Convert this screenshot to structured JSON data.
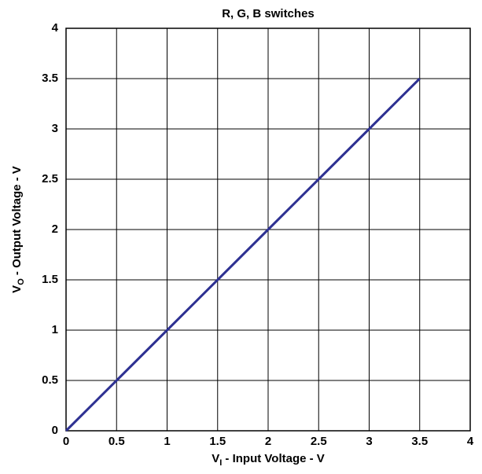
{
  "chart_data": {
    "type": "line",
    "title": "R, G, B switches",
    "x_label": {
      "main": "V",
      "sub": "I",
      "rest": " - Input Voltage - V"
    },
    "y_label": {
      "main": "V",
      "sub": "O",
      "rest": " - Output Voltage - V"
    },
    "x": [
      0,
      0.5,
      1,
      1.5,
      2,
      2.5,
      3,
      3.5
    ],
    "series": [
      {
        "color": "#2e3192",
        "values": [
          0,
          0.5,
          1,
          1.5,
          2,
          2.5,
          3,
          3.5
        ]
      }
    ],
    "xlim": [
      0,
      4
    ],
    "ylim": [
      0,
      4
    ],
    "xticks": [
      0,
      0.5,
      1,
      1.5,
      2,
      2.5,
      3,
      3.5,
      4
    ],
    "yticks": [
      0,
      0.5,
      1,
      1.5,
      2,
      2.5,
      3,
      3.5,
      4
    ],
    "grid": true
  }
}
